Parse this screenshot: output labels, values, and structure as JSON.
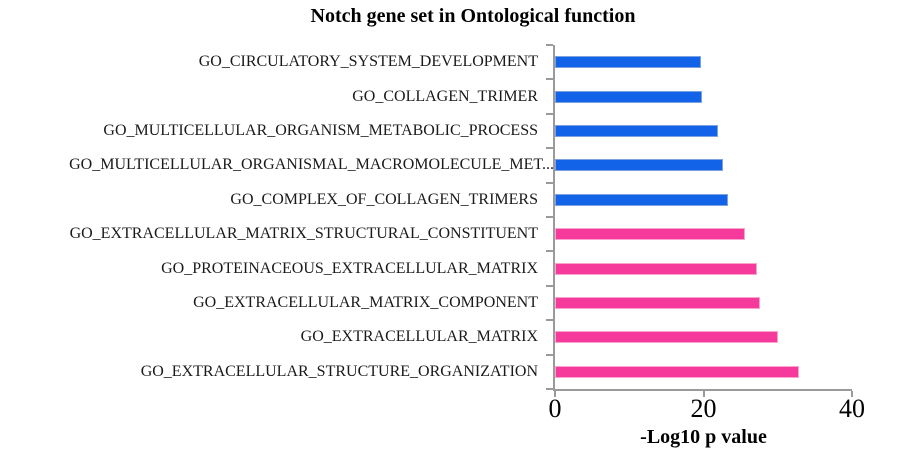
{
  "chart_data": {
    "type": "bar",
    "orientation": "horizontal",
    "title": "Notch gene set in Ontological function",
    "xlabel": "-Log10 p value",
    "ylabel": "",
    "xlim": [
      0,
      40
    ],
    "x_ticks": [
      "0",
      "20",
      "40"
    ],
    "grid": false,
    "legend": "none",
    "categories": [
      "GO_CIRCULATORY_SYSTEM_DEVELOPMENT",
      "GO_COLLAGEN_TRIMER",
      "GO_MULTICELLULAR_ORGANISM_METABOLIC_PROCESS",
      "GO_MULTICELLULAR_ORGANISMAL_MACROMOLECULE_MET...",
      "GO_COMPLEX_OF_COLLAGEN_TRIMERS",
      "GO_EXTRACELLULAR_MATRIX_STRUCTURAL_CONSTITUENT",
      "GO_PROTEINACEOUS_EXTRACELLULAR_MATRIX",
      "GO_EXTRACELLULAR_MATRIX_COMPONENT",
      "GO_EXTRACELLULAR_MATRIX",
      "GO_EXTRACELLULAR_STRUCTURE_ORGANIZATION"
    ],
    "values": [
      19.4,
      19.5,
      21.7,
      22.3,
      23.0,
      25.3,
      27.0,
      27.3,
      29.8,
      32.6
    ],
    "bar_colors": [
      "#1263E8",
      "#1263E8",
      "#1263E8",
      "#1263E8",
      "#1263E8",
      "#F53A9B",
      "#F53A9B",
      "#F53A9B",
      "#F53A9B",
      "#F53A9B"
    ],
    "bar_border_colors": [
      "#7CA2DF",
      "#7CA2DF",
      "#7CA2DF",
      "#7CA2DF",
      "#7CA2DF",
      "#F9A3CF",
      "#F9A3CF",
      "#F9A3CF",
      "#F9A3CF",
      "#F9A3CF"
    ],
    "colors": {
      "blue_series": "#1263E8",
      "pink_series": "#F53A9B",
      "axis": "#9A9A9A",
      "text": "#1A1A1A",
      "background": "#FFFFFF"
    }
  }
}
